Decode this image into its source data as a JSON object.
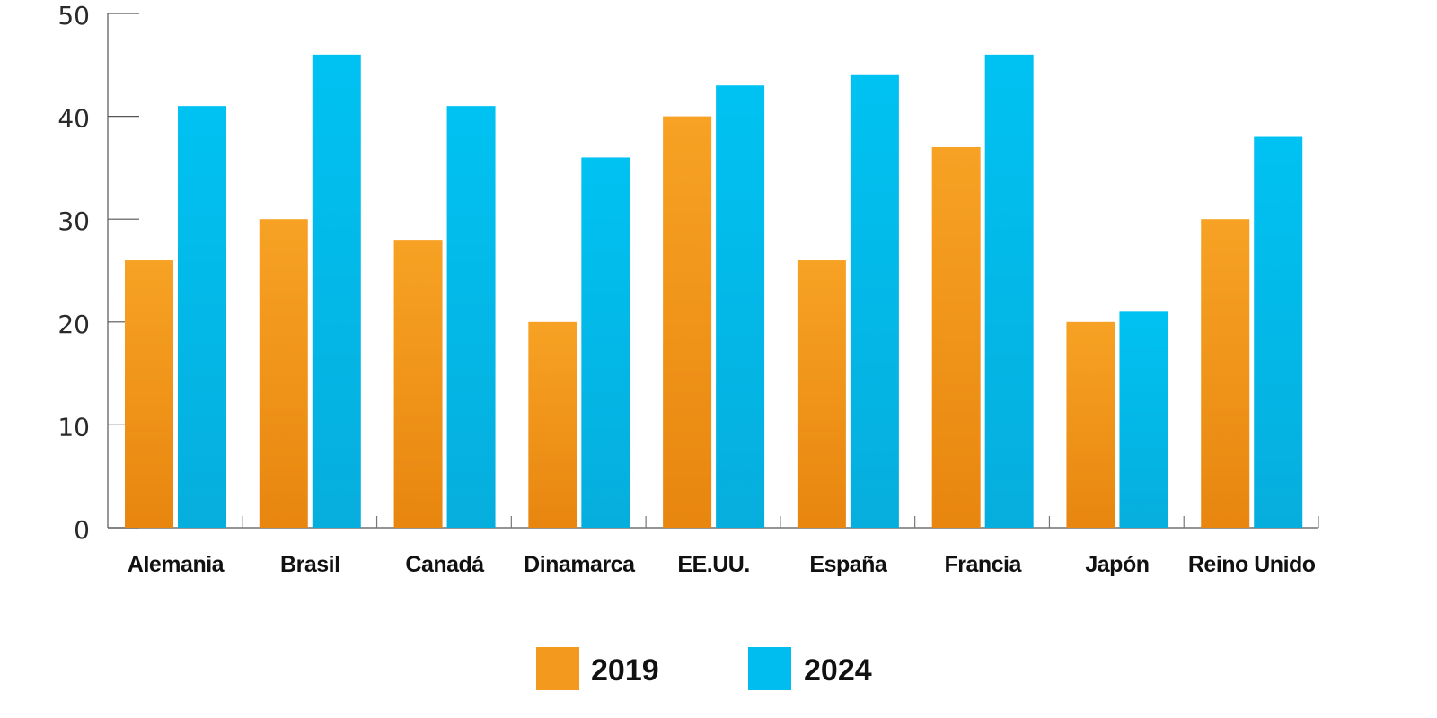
{
  "chart_data": {
    "type": "bar",
    "categories": [
      "Alemania",
      "Brasil",
      "Canadá",
      "Dinamarca",
      "EE.UU.",
      "España",
      "Francia",
      "Japón",
      "Reino Unido"
    ],
    "series": [
      {
        "name": "2019",
        "values": [
          26,
          30,
          28,
          20,
          40,
          26,
          37,
          20,
          30
        ],
        "color": "#f39a1e"
      },
      {
        "name": "2024",
        "values": [
          41,
          46,
          41,
          36,
          43,
          44,
          46,
          21,
          38
        ],
        "color": "#00bdf0"
      }
    ],
    "ylim": [
      0,
      50
    ],
    "yticks": [
      0,
      10,
      20,
      30,
      40,
      50
    ],
    "grid": false,
    "legend": "bottom-center"
  }
}
